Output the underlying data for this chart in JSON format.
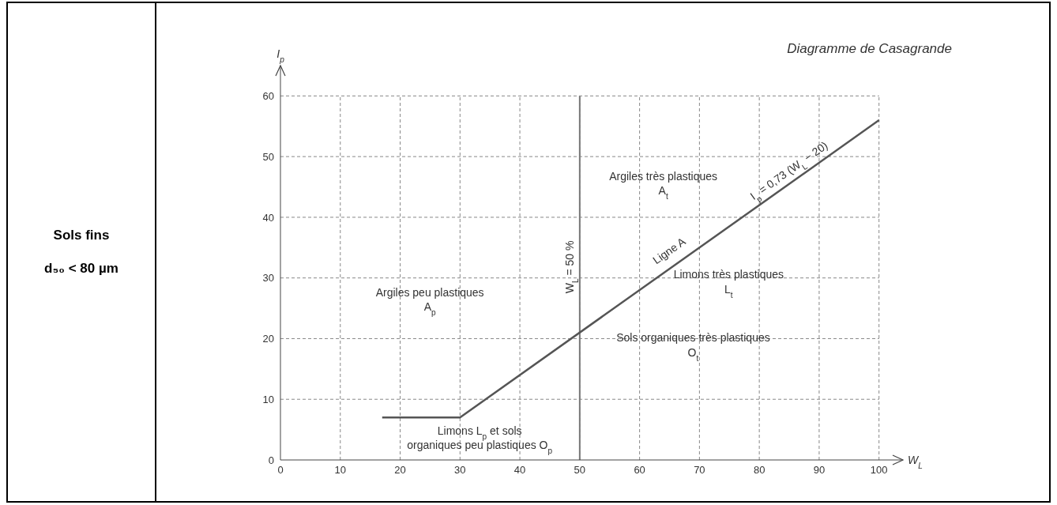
{
  "chart_data": {
    "type": "line",
    "title": "Diagramme de Casagrande",
    "xlabel": "W$_{L}$",
    "ylabel": "I$_{p}$",
    "series": [
      {
        "color": "#555555",
        "x": [
          17,
          30,
          100
        ],
        "values": [
          7,
          7,
          56
        ]
      }
    ],
    "xlim": [
      0,
      104
    ],
    "ylim": [
      0,
      65
    ],
    "xticks": [
      0,
      10,
      20,
      30,
      40,
      50,
      60,
      70,
      80,
      90,
      100
    ],
    "yticks": [
      0,
      10,
      20,
      30,
      40,
      50,
      60
    ],
    "grid": true,
    "marker": "none",
    "line_style": "solid",
    "ref_lines": [
      {
        "axis": "x",
        "value": 50,
        "label": "W$_{L}$ = 50 %",
        "color": "#777777",
        "line_style": "solid"
      }
    ],
    "annotations": [
      "Sols fins",
      "d₅₀ < 80 µm",
      "Argiles peu plastiques\nA$_{p}$",
      "Limons L$_{p}$ et sols\norganiques peu plastiques O$_{p}$",
      "Argiles très plastiques\nA$_{t}$",
      "Limons très plastiques\nL$_{t}$",
      "Sols organiques très plastiques\nO$_{t}$",
      {
        "text": "Ligne A",
        "x": 66,
        "y": 33
      },
      {
        "text": "I$_{p}$ = 0,73 (W$_{L}$ − 20)",
        "x": 86,
        "y": 46.2
      }
    ]
  }
}
